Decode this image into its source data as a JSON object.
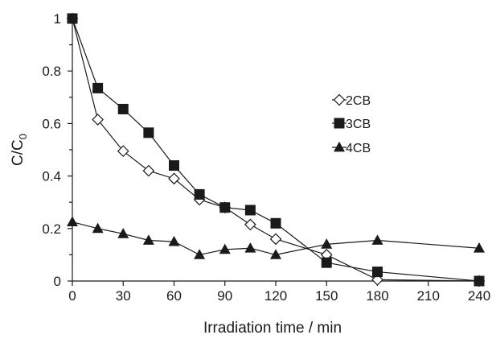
{
  "chart_data": {
    "type": "line",
    "title": "",
    "xlabel": "Irradiation time / min",
    "ylabel": "C/C",
    "ylabel_sub": "0",
    "xlim": [
      0,
      240
    ],
    "ylim": [
      0,
      1
    ],
    "x_ticks": [
      0,
      30,
      60,
      90,
      120,
      150,
      180,
      210,
      240
    ],
    "y_ticks": [
      0,
      0.2,
      0.4,
      0.6,
      0.8,
      1
    ],
    "y_tick_labels": [
      "0",
      "0.2",
      "0.4",
      "0.6",
      "0.8",
      "1"
    ],
    "grid": false,
    "legend_position": "right",
    "series": [
      {
        "name": "2CB",
        "marker": "diamond-open",
        "x": [
          0,
          15,
          30,
          45,
          60,
          75,
          90,
          105,
          120,
          150,
          180,
          240
        ],
        "y": [
          1.0,
          0.615,
          0.495,
          0.42,
          0.39,
          0.31,
          0.28,
          0.215,
          0.16,
          0.1,
          0.005,
          0.0
        ]
      },
      {
        "name": "3CB",
        "marker": "square-filled",
        "x": [
          0,
          15,
          30,
          45,
          60,
          75,
          90,
          105,
          120,
          150,
          180,
          240
        ],
        "y": [
          1.0,
          0.735,
          0.655,
          0.565,
          0.44,
          0.33,
          0.28,
          0.27,
          0.22,
          0.07,
          0.035,
          0.0
        ]
      },
      {
        "name": "4CB",
        "marker": "triangle-filled",
        "x": [
          0,
          15,
          30,
          45,
          60,
          75,
          90,
          105,
          120,
          150,
          180,
          240
        ],
        "y": [
          0.225,
          0.2,
          0.18,
          0.155,
          0.15,
          0.1,
          0.12,
          0.125,
          0.1,
          0.14,
          0.155,
          0.125
        ]
      }
    ]
  }
}
